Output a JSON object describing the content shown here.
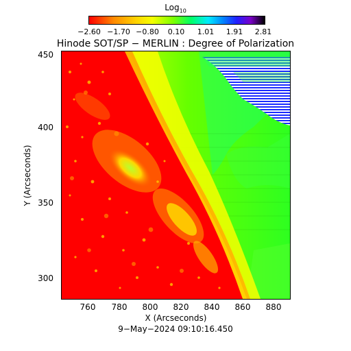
{
  "colorbar": {
    "title_main": "Log",
    "title_sub": "10",
    "ticks": [
      "−2.60",
      "−1.70",
      "−0.80",
      "0.10",
      "1.01",
      "1.91",
      "2.81"
    ]
  },
  "title": "Hinode SOT/SP − MERLIN : Degree of Polarization",
  "x_axis": {
    "label": "X (Arcseconds)",
    "ticks": [
      "760",
      "780",
      "800",
      "820",
      "840",
      "860",
      "880"
    ]
  },
  "y_axis": {
    "label": "Y (Arcseconds)",
    "ticks": [
      "450",
      "400",
      "350",
      "300"
    ]
  },
  "timestamp": "9−May−2024 09:10:16.450",
  "colors": {
    "low": "#ff0000",
    "mid_yellow": "#f5ff00",
    "mid_green": "#5cff00",
    "high": "#1a2aff"
  }
}
